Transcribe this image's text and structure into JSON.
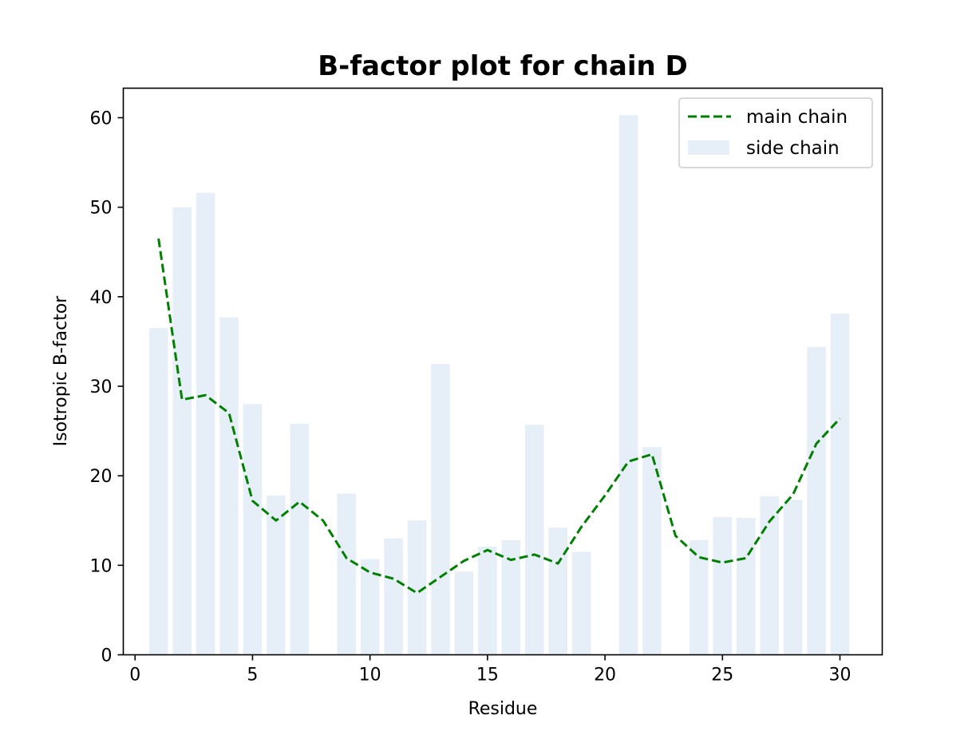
{
  "chart_data": {
    "type": "bar",
    "title": "B-factor plot for chain D",
    "xlabel": "Residue",
    "ylabel": "Isotropic B-factor",
    "xlim": [
      -0.5,
      31.8
    ],
    "ylim": [
      0,
      63.3
    ],
    "xticks": [
      0,
      5,
      10,
      15,
      20,
      25,
      30
    ],
    "yticks": [
      0,
      10,
      20,
      30,
      40,
      50,
      60
    ],
    "grid": false,
    "legend_position": "top-right",
    "series": [
      {
        "name": "side chain",
        "kind": "bar",
        "color": "#e6eef7",
        "x": [
          1,
          2,
          3,
          4,
          5,
          6,
          7,
          9,
          10,
          11,
          12,
          13,
          14,
          15,
          16,
          17,
          18,
          19,
          21,
          22,
          24,
          25,
          26,
          27,
          28,
          29,
          30
        ],
        "values": [
          36.5,
          50.0,
          51.6,
          37.7,
          28.0,
          17.8,
          25.8,
          18.0,
          10.7,
          13.0,
          15.0,
          32.5,
          9.3,
          12.1,
          12.8,
          25.7,
          14.2,
          11.5,
          60.3,
          23.2,
          12.8,
          15.4,
          15.3,
          17.7,
          17.3,
          34.4,
          38.1
        ]
      },
      {
        "name": "main chain",
        "kind": "line",
        "style": "dashed",
        "color": "#008000",
        "x": [
          1,
          2,
          3,
          4,
          5,
          6,
          7,
          8,
          9,
          10,
          11,
          12,
          13,
          14,
          15,
          16,
          17,
          18,
          19,
          20,
          21,
          22,
          23,
          24,
          25,
          26,
          27,
          28,
          29,
          30
        ],
        "values": [
          46.5,
          28.5,
          29.0,
          27.0,
          17.2,
          15.0,
          17.1,
          15.0,
          10.8,
          9.2,
          8.5,
          6.9,
          8.7,
          10.5,
          11.7,
          10.6,
          11.2,
          10.2,
          14.3,
          17.8,
          21.6,
          22.4,
          13.3,
          10.9,
          10.3,
          10.8,
          14.9,
          17.9,
          23.6,
          26.4
        ]
      }
    ]
  }
}
